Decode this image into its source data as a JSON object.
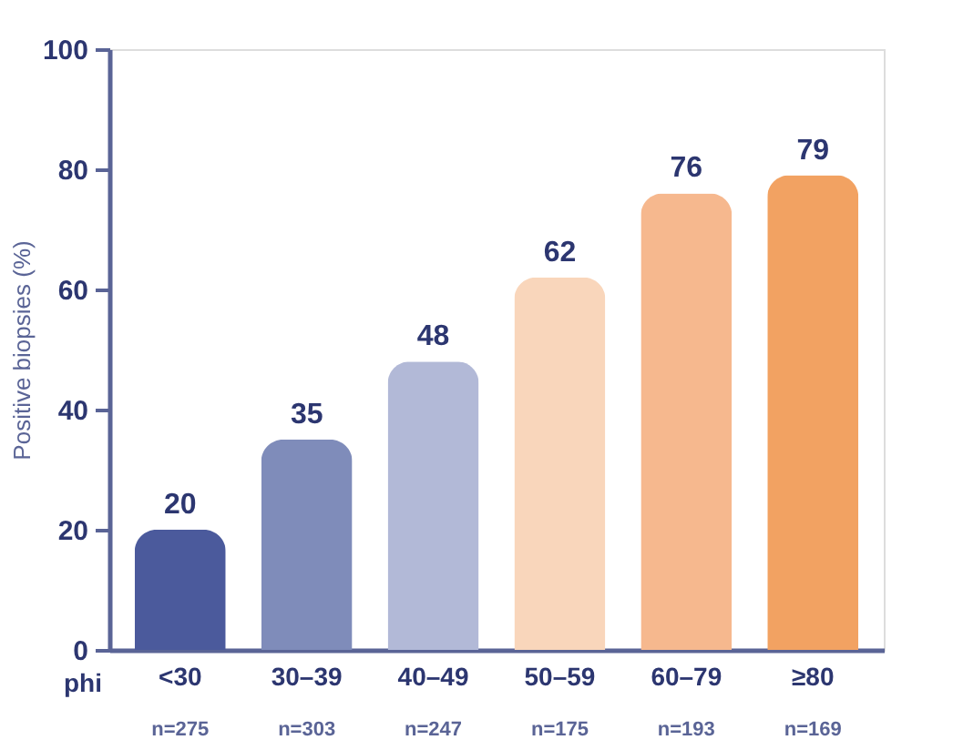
{
  "chart_data": {
    "type": "bar",
    "ylabel": "Positive biopsies (%)",
    "xlabel": "phi",
    "categories": [
      "<30",
      "30–39",
      "40–49",
      "50–59",
      "60–79",
      "≥80"
    ],
    "values": [
      20,
      35,
      48,
      62,
      76,
      79
    ],
    "colors": [
      "#4b5a9c",
      "#7f8cba",
      "#b2b9d7",
      "#f9d6bb",
      "#f6b88e",
      "#f2a262"
    ],
    "data_labels": true,
    "annotations": [
      "n=275",
      "n=303",
      "n=247",
      "n=175",
      "n=193",
      "n=169"
    ],
    "ylim": [
      0,
      100
    ],
    "yticks": [
      0,
      20,
      40,
      60,
      80,
      100
    ],
    "grid": false
  }
}
